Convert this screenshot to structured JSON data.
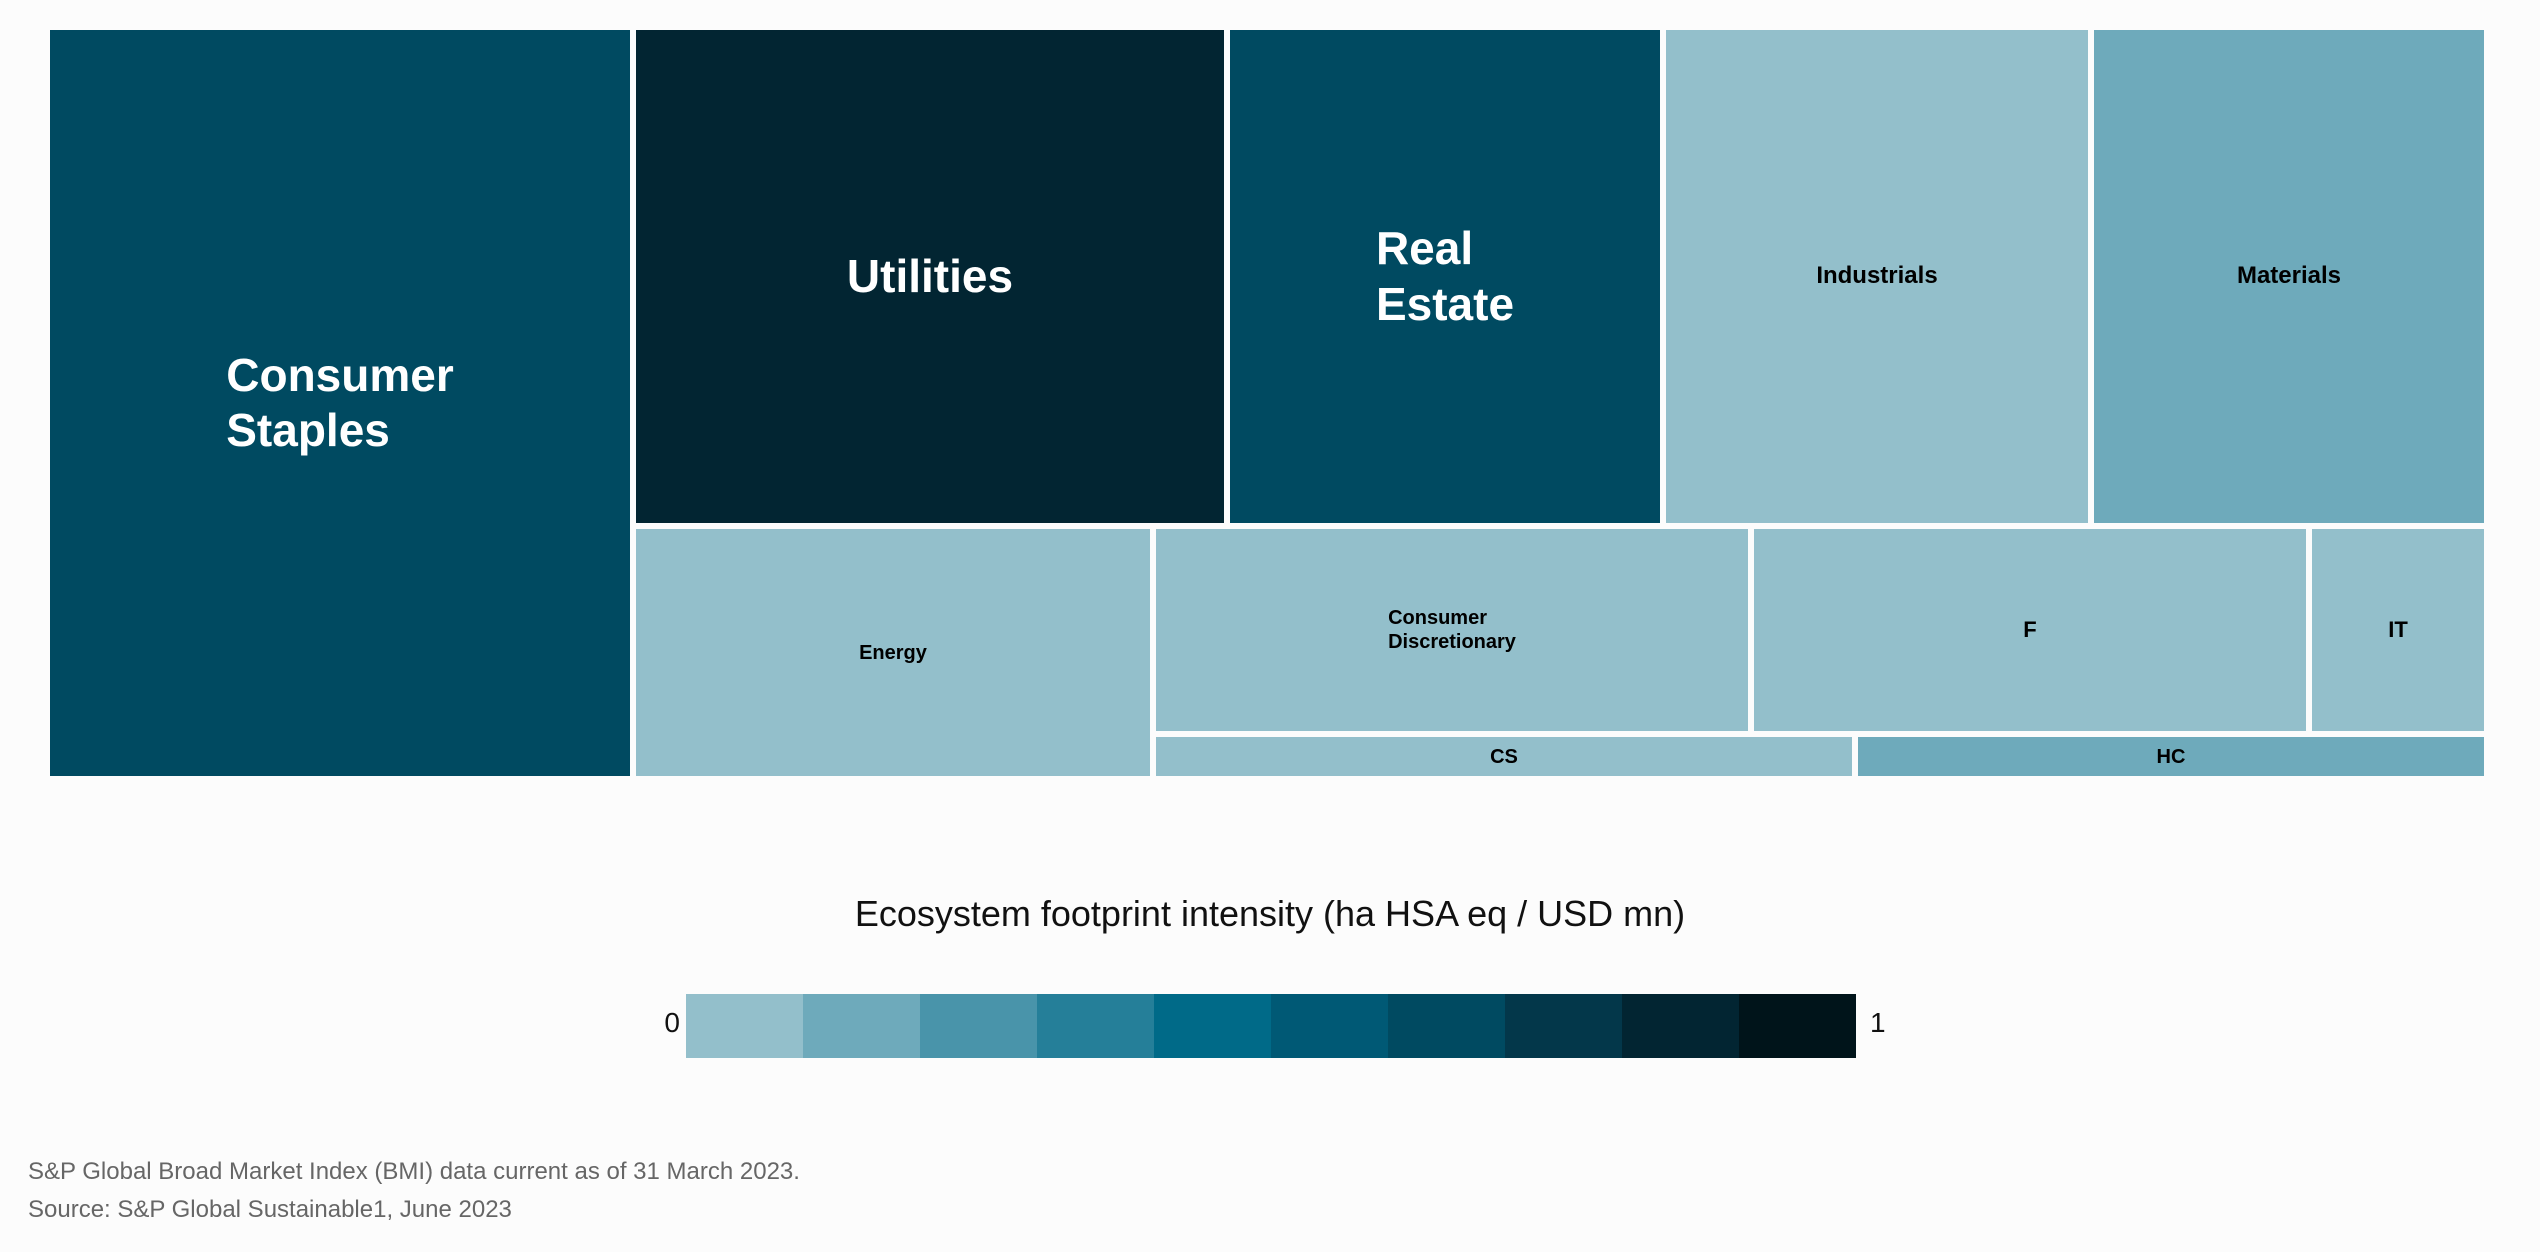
{
  "chart_data": {
    "type": "treemap",
    "title": "",
    "tiles": [
      {
        "label": "Consumer\nStaples",
        "intensity": 0.6
      },
      {
        "label": "Utilities",
        "intensity": 0.8
      },
      {
        "label": "Real\nEstate",
        "intensity": 0.6
      },
      {
        "label": "Industrials",
        "intensity": 0.05
      },
      {
        "label": "Materials",
        "intensity": 0.1
      },
      {
        "label": "Energy",
        "intensity": 0.05
      },
      {
        "label": "Consumer\nDiscretionary",
        "intensity": 0.05
      },
      {
        "label": "F",
        "intensity": 0.05
      },
      {
        "label": "IT",
        "intensity": 0.05
      },
      {
        "label": "CS",
        "intensity": 0.05
      },
      {
        "label": "HC",
        "intensity": 0.1
      }
    ],
    "legend": {
      "title": "Ecosystem footprint intensity (ha HSA eq / USD mn)",
      "min_label": "0",
      "max_label": "1",
      "min": 0,
      "max": 1,
      "colors": [
        "#93bfcb",
        "#6eaabb",
        "#4994aa",
        "#257f99",
        "#006a88",
        "#005975",
        "#004a61",
        "#03374a",
        "#022532",
        "#00141a"
      ]
    }
  },
  "footnotes": {
    "note": "S&P Global Broad Market Index (BMI) data current as of 31 March 2023.",
    "source": "Source: S&P Global Sustainable1, June 2023"
  }
}
